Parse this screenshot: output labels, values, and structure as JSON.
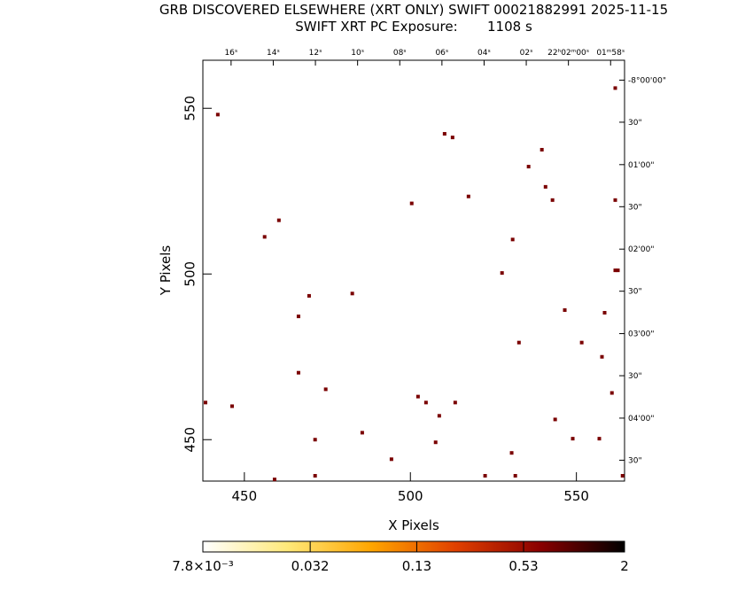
{
  "chart_data": {
    "type": "scatter",
    "title": "GRB DISCOVERED ELSEWHERE (XRT ONLY) SWIFT 00021882991 2025-11-15",
    "subtitle": "SWIFT XRT PC Exposure:       1108 s",
    "x_label": "X Pixels",
    "y_label": "Y Pixels",
    "color": "#7a0000",
    "x": [
      442.0,
      561.7,
      510.3,
      512.7,
      539.6,
      535.6,
      540.7,
      517.5,
      542.8,
      561.7,
      500.4,
      460.4,
      456.1,
      530.8,
      527.6,
      561.7,
      562.5,
      482.5,
      469.5,
      546.5,
      558.5,
      466.3,
      532.7,
      551.6,
      557.7,
      466.3,
      474.5,
      560.7,
      438.3,
      446.3,
      502.3,
      504.7,
      513.5,
      508.7,
      543.6,
      485.5,
      471.3,
      507.6,
      548.9,
      556.9,
      530.5,
      494.3,
      459.1,
      471.3,
      522.5,
      531.6,
      563.9
    ],
    "values": [
      548.1,
      556.1,
      542.3,
      541.2,
      537.5,
      532.4,
      526.3,
      523.4,
      522.3,
      522.3,
      521.3,
      516.2,
      511.2,
      510.4,
      500.3,
      501.1,
      501.1,
      494.1,
      493.4,
      489.1,
      488.3,
      487.2,
      479.3,
      479.3,
      475.0,
      470.2,
      465.2,
      464.1,
      461.2,
      460.1,
      463.0,
      461.2,
      461.2,
      457.2,
      456.1,
      452.1,
      450.0,
      449.2,
      450.3,
      450.3,
      446.0,
      444.1,
      438.0,
      439.1,
      439.1,
      439.1,
      439.1
    ],
    "xlim": [
      437.5,
      564.5
    ],
    "ylim": [
      437.5,
      564.5
    ],
    "xticks": [
      450,
      500,
      550
    ],
    "yticks": [
      450,
      500,
      550
    ],
    "x2ticks": [
      {
        "value": 446.0,
        "label": "16ˢ"
      },
      {
        "value": 458.7,
        "label": "14ˢ"
      },
      {
        "value": 471.4,
        "label": "12ˢ"
      },
      {
        "value": 484.1,
        "label": "10ˢ"
      },
      {
        "value": 496.8,
        "label": "08ˢ"
      },
      {
        "value": 509.5,
        "label": "06ˢ"
      },
      {
        "value": 522.2,
        "label": "04ˢ"
      },
      {
        "value": 534.9,
        "label": "02ˢ"
      },
      {
        "value": 547.6,
        "label": "22ʰ02ᵐ00ˢ"
      },
      {
        "value": 560.3,
        "label": "01ᵐ58ˢ"
      }
    ],
    "y2ticks": [
      {
        "value": 558.5,
        "label": "-8°00'00\""
      },
      {
        "value": 545.8,
        "label": "30\""
      },
      {
        "value": 533.0,
        "label": "01'00\""
      },
      {
        "value": 520.3,
        "label": "30\""
      },
      {
        "value": 507.5,
        "label": "02'00\""
      },
      {
        "value": 494.8,
        "label": "30\""
      },
      {
        "value": 482.0,
        "label": "03'00\""
      },
      {
        "value": 469.3,
        "label": "30\""
      },
      {
        "value": 456.5,
        "label": "04'00\""
      },
      {
        "value": 443.8,
        "label": "30\""
      }
    ],
    "colorbar": {
      "lim": [
        0.0078,
        2
      ],
      "log": true,
      "colors": [
        "#ffffff",
        "#ffe97a",
        "#ffa500",
        "#e04000",
        "#8a0000",
        "#000000"
      ],
      "ticks": [
        {
          "value": 0.0078,
          "label": "7.8×10⁻³"
        },
        0.032,
        0.13,
        0.53,
        2
      ]
    }
  }
}
